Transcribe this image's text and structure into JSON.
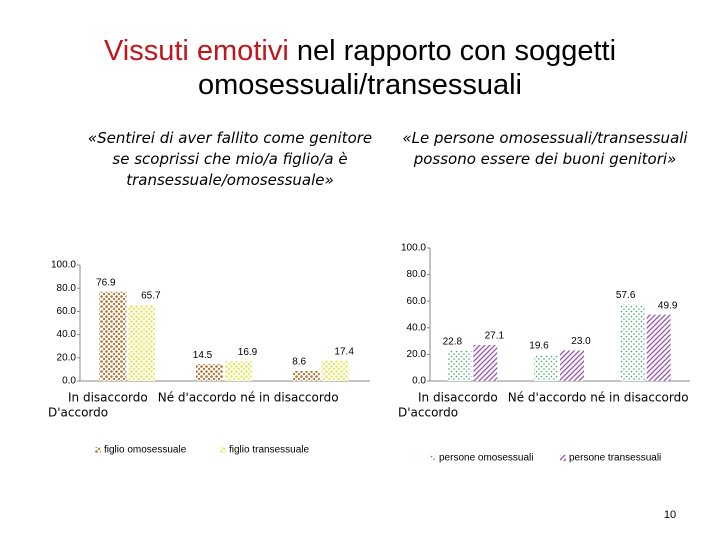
{
  "slide_title": {
    "highlight": "Vissuti emotivi",
    "rest": "nel rapporto con soggetti omosessuali/transessuali"
  },
  "page_number": "10",
  "chart_data": [
    {
      "type": "bar",
      "title": "«Sentirei di aver fallito come genitore se scoprissi che mio/a figlio/a è transessuale/omosessuale»",
      "categories": [
        "D'accordo",
        "In disaccordo",
        "Né d'accordo né in disaccordo"
      ],
      "series": [
        {
          "name": "figlio omosessuale",
          "color": "#b5702e",
          "values": [
            76.9,
            14.5,
            8.6
          ]
        },
        {
          "name": "figlio transessuale",
          "color": "#e8e85a",
          "values": [
            65.7,
            16.9,
            17.4
          ]
        }
      ],
      "ylim": [
        0,
        100
      ],
      "yticks": [
        {
          "value": 0,
          "label": "0.0"
        },
        {
          "value": 20,
          "label": "20.0"
        },
        {
          "value": 40,
          "label": "40.0"
        },
        {
          "value": 60,
          "label": "60.0"
        },
        {
          "value": 80,
          "label": "80.0"
        },
        {
          "value": 100,
          "label": "100.0"
        }
      ],
      "legend": "bottom"
    },
    {
      "type": "bar",
      "title": "«Le persone omosessuali/transessuali possono essere dei buoni genitori»",
      "categories": [
        "D'accordo",
        "In disaccordo",
        "Né d'accordo né in disaccordo"
      ],
      "series": [
        {
          "name": "persone omosessuali",
          "color": "#3aa860",
          "values": [
            22.8,
            19.6,
            57.6
          ]
        },
        {
          "name": "persone transessuali",
          "color": "#9a4fb0",
          "values": [
            27.1,
            23,
            49.9
          ],
          "value_labels": [
            "27.1",
            "23.0",
            "49.9"
          ]
        }
      ],
      "ylim": [
        0,
        100
      ],
      "yticks": [
        {
          "value": 0,
          "label": "0.0"
        },
        {
          "value": 20,
          "label": "20.0"
        },
        {
          "value": 40,
          "label": "40.0"
        },
        {
          "value": 60,
          "label": "60.0"
        },
        {
          "value": 80,
          "label": "80.0"
        },
        {
          "value": 100,
          "label": "100.0"
        }
      ],
      "legend": "bottom"
    }
  ]
}
